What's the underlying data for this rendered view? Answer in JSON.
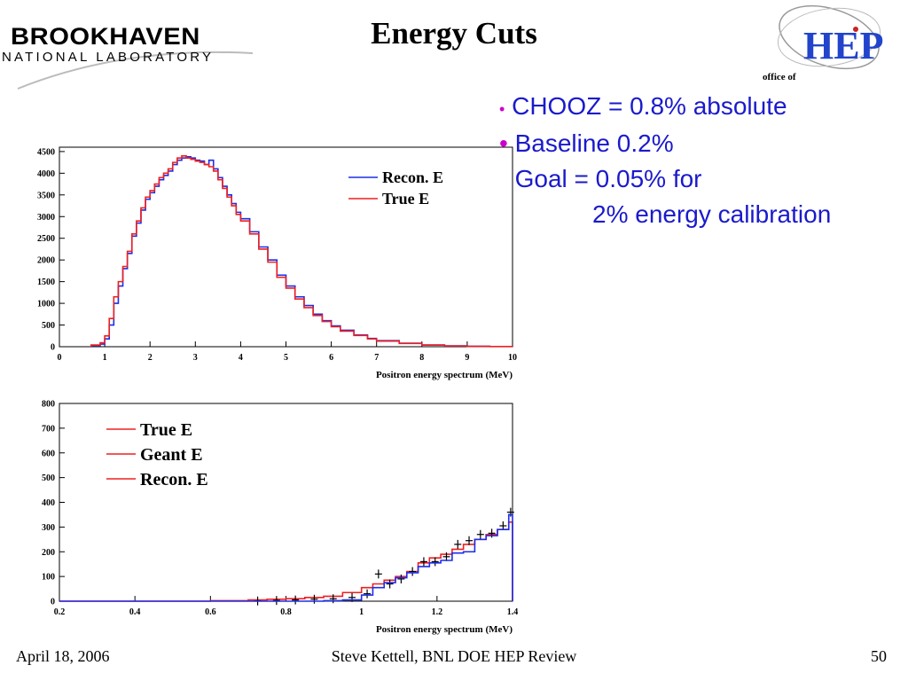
{
  "slide": {
    "title": "Energy Cuts",
    "logos": {
      "left_main": "BROOKHAVEN",
      "left_sub": "NATIONAL LABORATORY",
      "right_main": "HEP",
      "right_sub": "office of"
    },
    "bullets": [
      {
        "text": "CHOOZ = 0.8% absolute",
        "size": "small-dot"
      },
      {
        "text": "Baseline 0.2%"
      },
      {
        "text": "Goal = 0.05% for"
      },
      {
        "text": "2% energy calibration",
        "indent": true
      }
    ],
    "footer": {
      "date": "April 18, 2006",
      "author": "Steve Kettell, BNL DOE HEP Review",
      "page": "50"
    },
    "colors": {
      "title": "#000000",
      "bullet_text": "#1a1acc",
      "bullet_dot": "#cc00cc"
    }
  },
  "chart_data": [
    {
      "type": "line",
      "style": "step-histogram",
      "xlabel": "Positron energy spectrum (MeV)",
      "xlim": [
        0,
        10
      ],
      "ylim": [
        0,
        4600
      ],
      "xticks": [
        0,
        1,
        2,
        3,
        4,
        5,
        6,
        7,
        8,
        9,
        10
      ],
      "yticks": [
        0,
        500,
        1000,
        1500,
        2000,
        2500,
        3000,
        3500,
        4000,
        4500
      ],
      "legend_position": "top-right",
      "x": [
        0.7,
        0.9,
        1.0,
        1.1,
        1.2,
        1.3,
        1.4,
        1.5,
        1.6,
        1.7,
        1.8,
        1.9,
        2.0,
        2.1,
        2.2,
        2.3,
        2.4,
        2.5,
        2.6,
        2.7,
        2.8,
        2.9,
        3.0,
        3.1,
        3.2,
        3.3,
        3.4,
        3.5,
        3.6,
        3.7,
        3.8,
        3.9,
        4.0,
        4.2,
        4.4,
        4.6,
        4.8,
        5.0,
        5.2,
        5.4,
        5.6,
        5.8,
        6.0,
        6.2,
        6.5,
        6.8,
        7.0,
        7.5,
        8.0,
        8.5,
        9.0,
        9.5,
        10.0
      ],
      "series": [
        {
          "name": "Recon. E",
          "color": "#1c2ee6",
          "values": [
            30,
            60,
            180,
            500,
            1000,
            1400,
            1800,
            2150,
            2550,
            2850,
            3150,
            3400,
            3550,
            3700,
            3850,
            3950,
            4050,
            4200,
            4300,
            4350,
            4380,
            4350,
            4300,
            4280,
            4200,
            4300,
            4100,
            3900,
            3700,
            3500,
            3300,
            3100,
            2950,
            2650,
            2300,
            2000,
            1650,
            1400,
            1150,
            950,
            750,
            600,
            480,
            380,
            270,
            190,
            140,
            80,
            40,
            20,
            10,
            5,
            2
          ]
        },
        {
          "name": "True E",
          "color": "#ee2020",
          "values": [
            40,
            90,
            250,
            650,
            1150,
            1500,
            1850,
            2200,
            2600,
            2900,
            3200,
            3450,
            3600,
            3750,
            3900,
            4000,
            4100,
            4250,
            4350,
            4400,
            4350,
            4320,
            4280,
            4250,
            4200,
            4150,
            4050,
            3850,
            3650,
            3450,
            3250,
            3050,
            2900,
            2600,
            2250,
            1950,
            1600,
            1350,
            1100,
            900,
            720,
            580,
            460,
            360,
            260,
            180,
            130,
            75,
            38,
            18,
            9,
            4,
            2
          ]
        }
      ]
    },
    {
      "type": "line",
      "style": "step-histogram",
      "xlabel": "Positron energy spectrum (MeV)",
      "xlim": [
        0.2,
        1.4
      ],
      "ylim": [
        0,
        800
      ],
      "xticks": [
        0.2,
        0.4,
        0.6,
        0.8,
        1,
        1.2,
        1.4
      ],
      "yticks": [
        0,
        100,
        200,
        300,
        400,
        500,
        600,
        700,
        800
      ],
      "legend_position": "top-left",
      "x": [
        0.2,
        0.5,
        0.6,
        0.7,
        0.75,
        0.8,
        0.85,
        0.9,
        0.95,
        1.0,
        1.03,
        1.06,
        1.09,
        1.12,
        1.15,
        1.18,
        1.21,
        1.24,
        1.27,
        1.3,
        1.33,
        1.36,
        1.39
      ],
      "series": [
        {
          "name": "True E",
          "color": "#ee2020",
          "values": [
            0,
            0,
            2,
            5,
            8,
            10,
            15,
            20,
            35,
            55,
            70,
            85,
            100,
            120,
            155,
            175,
            190,
            210,
            230,
            250,
            270,
            290,
            320
          ]
        },
        {
          "name": "Geant E",
          "color": "#ee2020",
          "markers": true,
          "values": [
            0,
            0,
            0,
            1,
            3,
            5,
            8,
            10,
            15,
            30,
            110,
            70,
            90,
            120,
            160,
            160,
            180,
            230,
            245,
            270,
            275,
            305,
            360
          ]
        },
        {
          "name": "Recon. E",
          "color": "#1c2ee6",
          "values": [
            0,
            0,
            0,
            0,
            0,
            0,
            0,
            2,
            5,
            25,
            55,
            75,
            95,
            115,
            140,
            155,
            165,
            195,
            200,
            250,
            265,
            290,
            350
          ]
        }
      ]
    }
  ]
}
